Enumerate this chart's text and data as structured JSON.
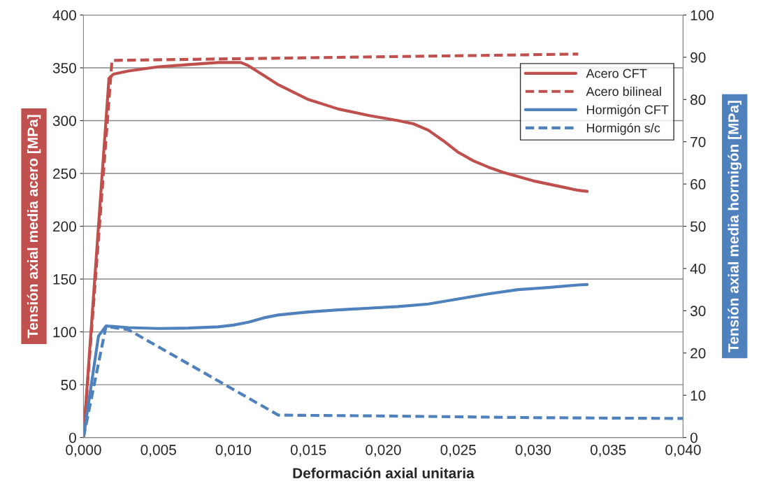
{
  "chart_data": {
    "type": "line",
    "xlabel": "Deformación axial unitaria",
    "ylabel": "Tensión axial media acero [MPa]",
    "y2label": "Tensión axial media hormigón [MPa]",
    "xlim": [
      0,
      0.04
    ],
    "xticks": [
      {
        "value": 0,
        "label": "0,000"
      },
      {
        "value": 0.005,
        "label": "0,005"
      },
      {
        "value": 0.01,
        "label": "0,010"
      },
      {
        "value": 0.015,
        "label": "0,015"
      },
      {
        "value": 0.02,
        "label": "0,020"
      },
      {
        "value": 0.025,
        "label": "0,025"
      },
      {
        "value": 0.03,
        "label": "0,030"
      },
      {
        "value": 0.035,
        "label": "0,035"
      },
      {
        "value": 0.04,
        "label": "0,040"
      }
    ],
    "ylim": [
      0,
      400
    ],
    "yticks": [
      0,
      50,
      100,
      150,
      200,
      250,
      300,
      350,
      400
    ],
    "y2lim": [
      0,
      100
    ],
    "y2ticks": [
      0,
      10,
      20,
      30,
      40,
      50,
      60,
      70,
      80,
      90,
      100
    ],
    "grid": "y",
    "legend": "top right",
    "series": [
      {
        "name": "Acero CFT",
        "color": "#c0504d",
        "line_style": "solid",
        "x": [
          0,
          0.0017,
          0.002,
          0.003,
          0.005,
          0.007,
          0.009,
          0.0105,
          0.011,
          0.012,
          0.013,
          0.015,
          0.017,
          0.019,
          0.021,
          0.022,
          0.023,
          0.024,
          0.025,
          0.026,
          0.027,
          0.028,
          0.029,
          0.03,
          0.031,
          0.032,
          0.033,
          0.0336
        ],
        "values": [
          0,
          340,
          344,
          347,
          351,
          353,
          355,
          355,
          352,
          343,
          334,
          320,
          311,
          305,
          300,
          297,
          291,
          281,
          270,
          262,
          256,
          251,
          247,
          243,
          240,
          237,
          234,
          233
        ]
      },
      {
        "name": "Acero bilineal",
        "color": "#c0504d",
        "line_style": "dashed",
        "x": [
          0,
          0.0019,
          0.033
        ],
        "values": [
          0,
          357,
          363
        ]
      },
      {
        "name": "Hormigón CFT",
        "color": "#4f81bd",
        "line_style": "solid",
        "axis": "y2",
        "x": [
          0,
          0.001,
          0.0015,
          0.002,
          0.003,
          0.005,
          0.007,
          0.009,
          0.01,
          0.011,
          0.012,
          0.013,
          0.015,
          0.017,
          0.019,
          0.021,
          0.023,
          0.025,
          0.027,
          0.029,
          0.031,
          0.033,
          0.0336
        ],
        "values": [
          0,
          24,
          26.4,
          26.3,
          26,
          25.8,
          25.9,
          26.2,
          26.6,
          27.3,
          28.3,
          29,
          29.7,
          30.2,
          30.6,
          31,
          31.6,
          32.8,
          34,
          35,
          35.5,
          36.1,
          36.2
        ]
      },
      {
        "name": "Hormigón s/c",
        "color": "#4f81bd",
        "line_style": "dashed",
        "axis": "y2",
        "x": [
          0,
          0.0015,
          0.003,
          0.013,
          0.02,
          0.03,
          0.04
        ],
        "values": [
          0,
          26.3,
          25.5,
          5.3,
          5.1,
          4.7,
          4.5
        ]
      }
    ]
  }
}
